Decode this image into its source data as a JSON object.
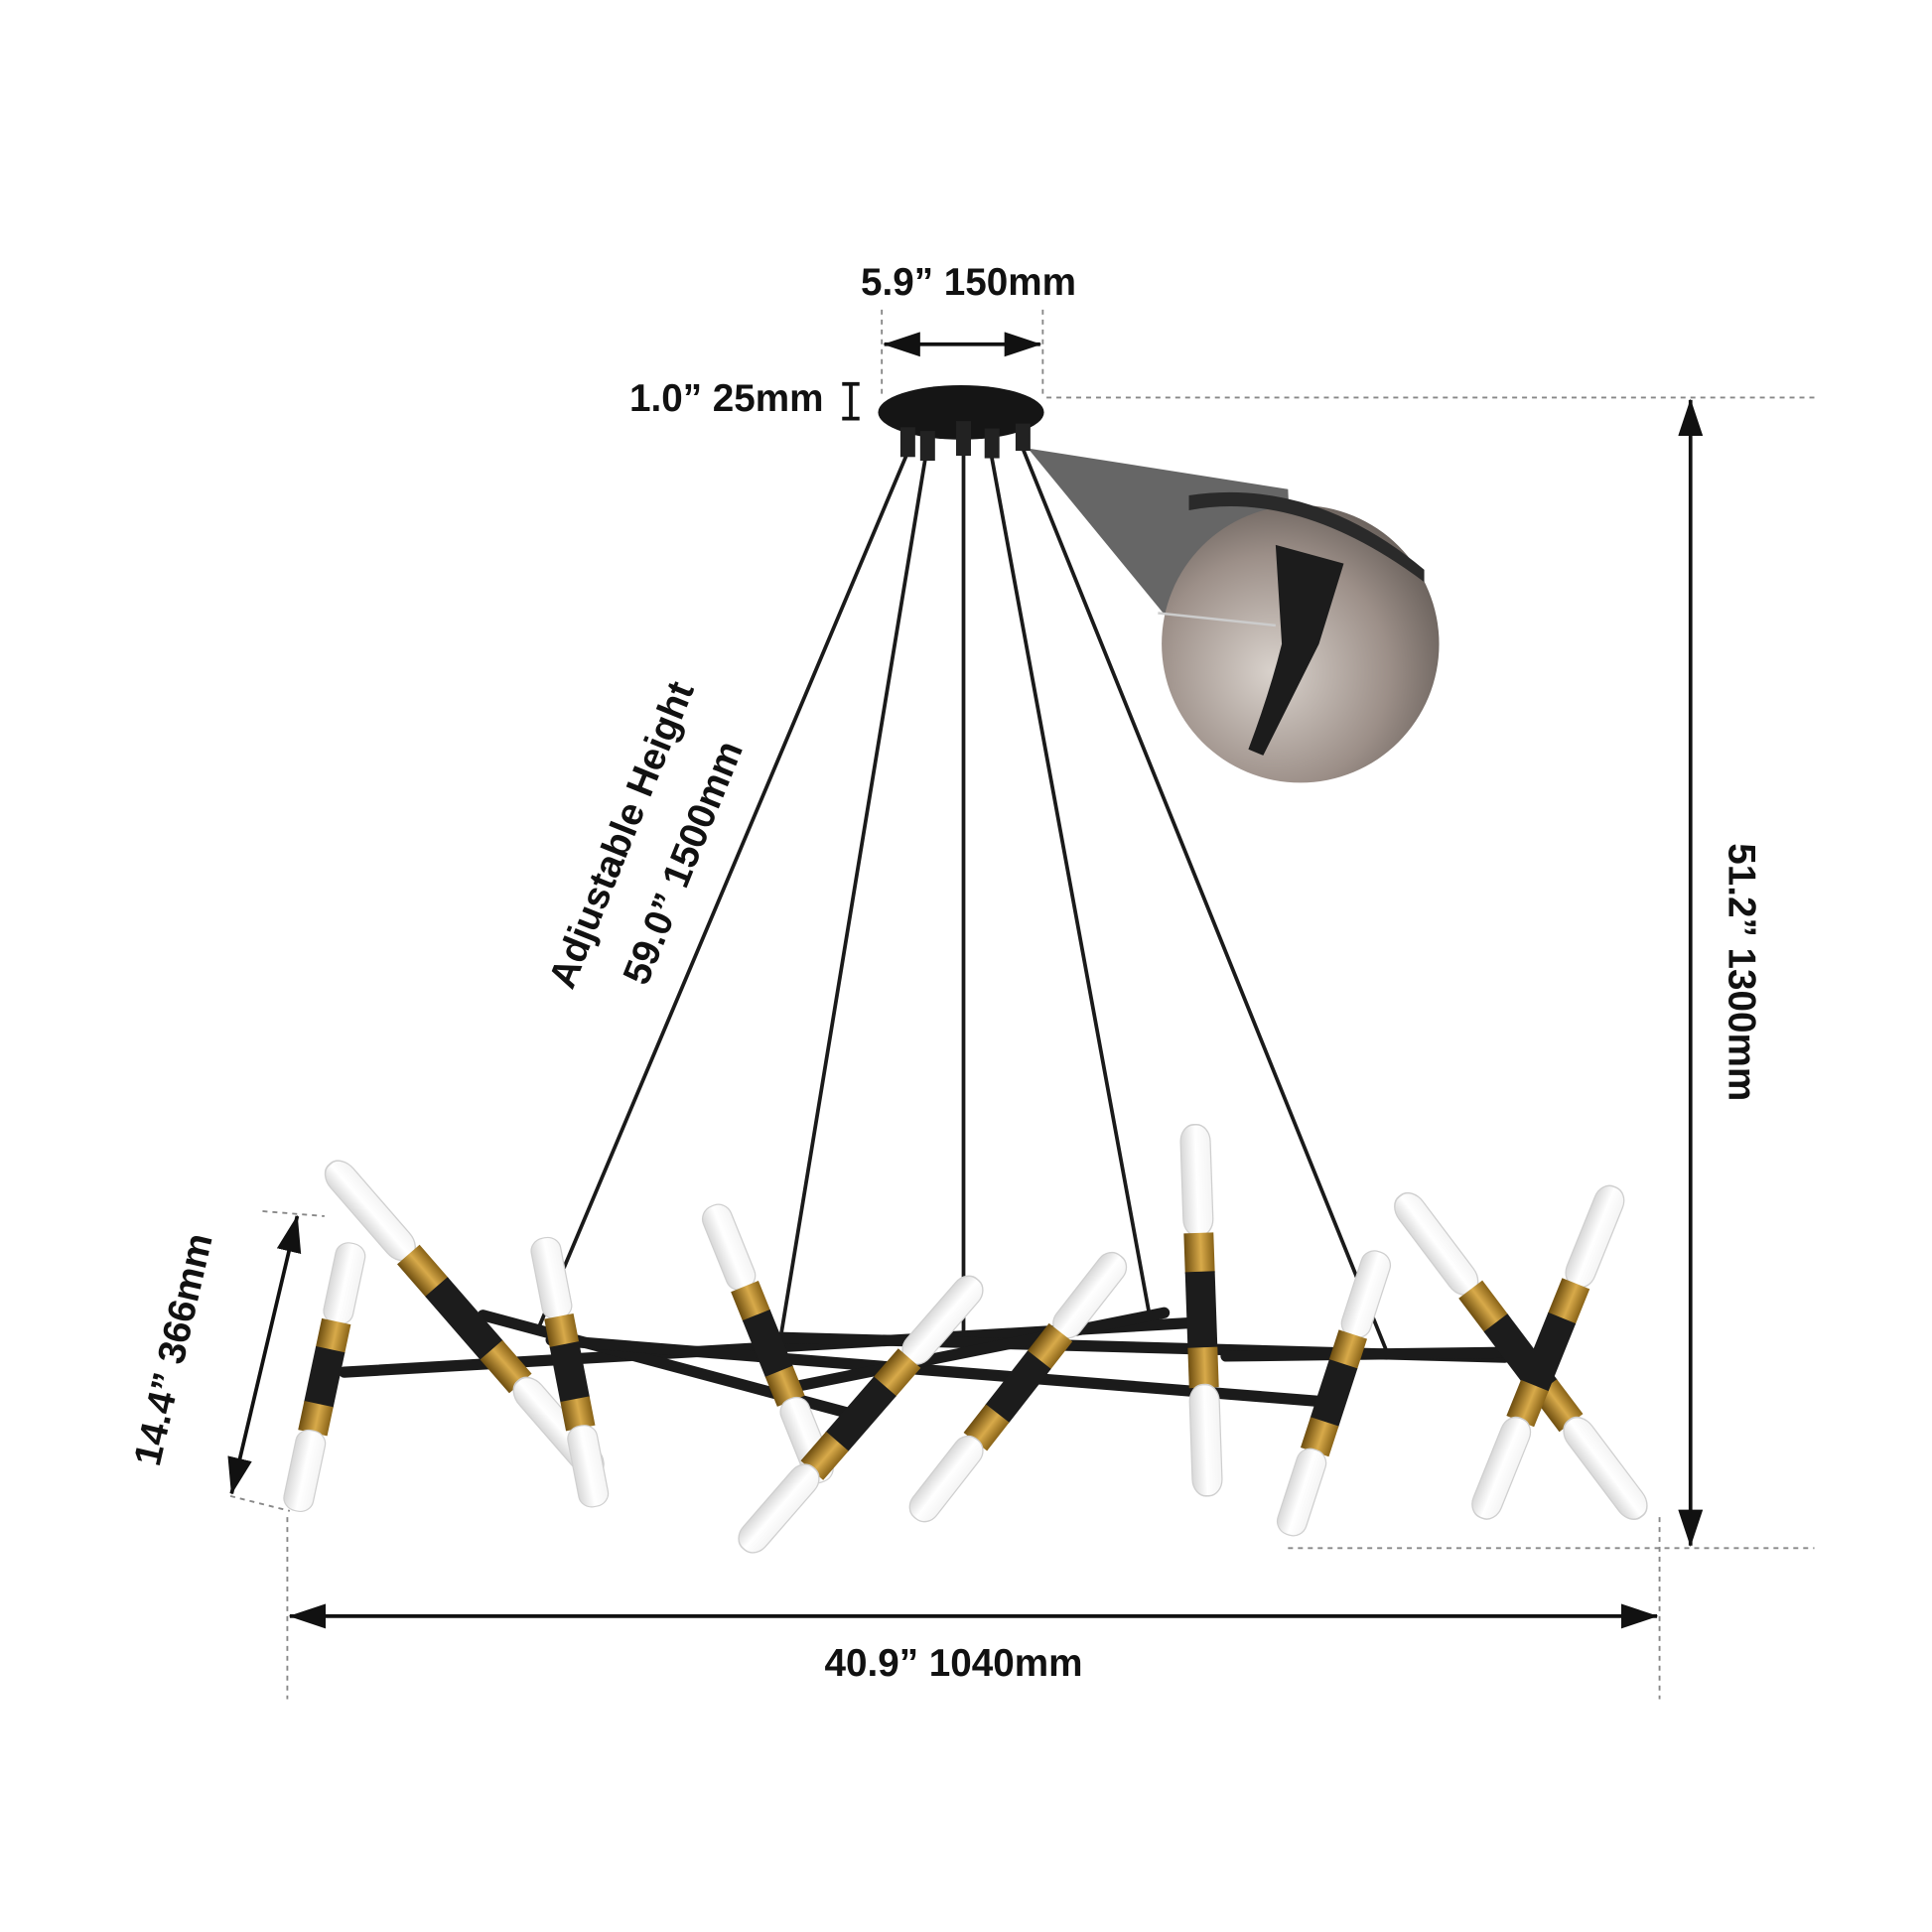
{
  "dimensions": {
    "canopy_width": "5.9”  150mm",
    "canopy_height": "1.0”  25mm",
    "adjustable_label": "Adjustable Height",
    "adjustable_height": "59.0”  1500mm",
    "total_height": "51.2”  1300mm",
    "fixture_height": "14.4”  366mm",
    "total_width": "40.9”  1040mm"
  }
}
